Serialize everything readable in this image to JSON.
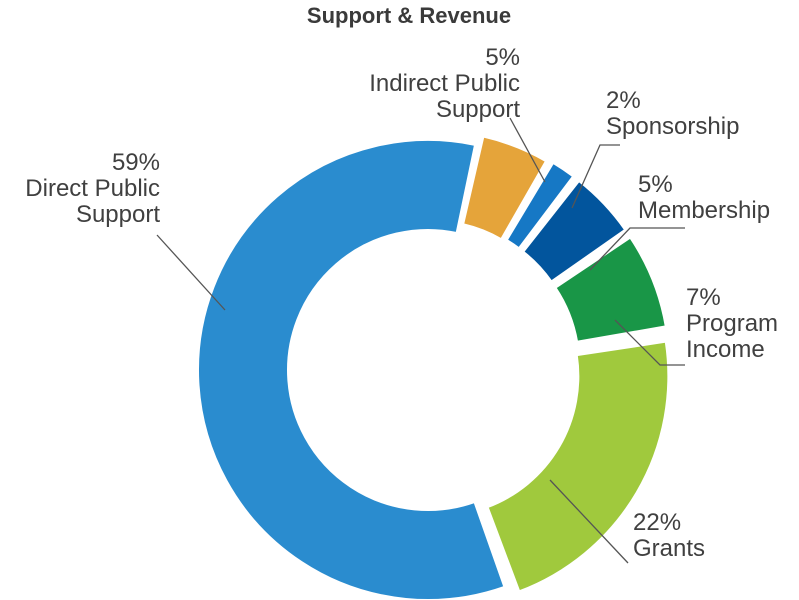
{
  "chart_data": {
    "type": "pie",
    "style": "donut",
    "title": "Support & Revenue",
    "legend": "none",
    "slices": [
      {
        "percent_label": "59%",
        "label_lines": [
          "Direct Public",
          "Support"
        ],
        "value": 59,
        "color": "#2a8ccf"
      },
      {
        "percent_label": "5%",
        "label_lines": [
          "Indirect Public",
          "Support"
        ],
        "value": 5,
        "color": "#e5a43a"
      },
      {
        "percent_label": "2%",
        "label_lines": [
          "Sponsorship"
        ],
        "value": 2,
        "color": "#1678c5"
      },
      {
        "percent_label": "5%",
        "label_lines": [
          "Membership"
        ],
        "value": 5,
        "color": "#02559d"
      },
      {
        "percent_label": "7%",
        "label_lines": [
          "Program",
          "Income"
        ],
        "value": 7,
        "color": "#199647"
      },
      {
        "percent_label": "22%",
        "label_lines": [
          "Grants"
        ],
        "value": 22,
        "color": "#a0c93d"
      }
    ]
  }
}
